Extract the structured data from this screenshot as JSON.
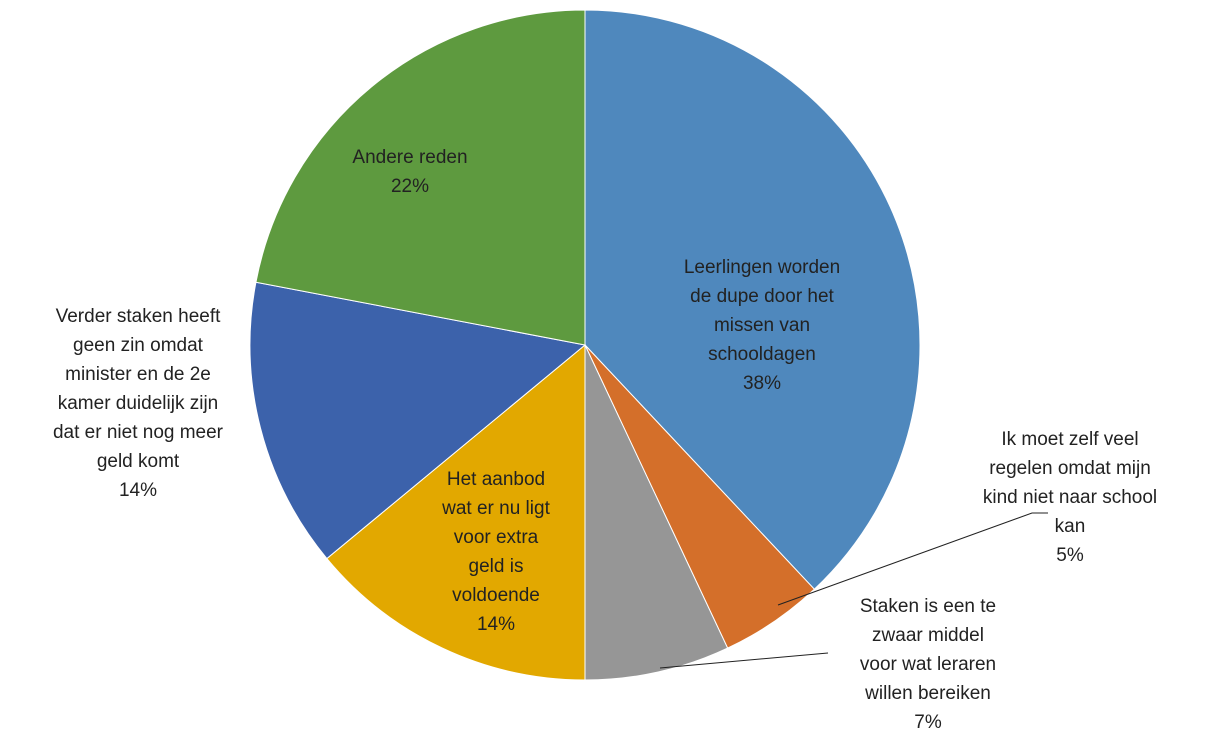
{
  "chart_data": {
    "type": "pie",
    "categories": [
      [
        "Leerlingen worden",
        "de dupe door het",
        "missen van",
        "schooldagen"
      ],
      [
        "Ik moet zelf veel",
        "regelen omdat mijn",
        "kind niet naar school",
        "kan"
      ],
      [
        "Staken is een te",
        "zwaar middel",
        "voor wat leraren",
        "willen bereiken"
      ],
      [
        "Het aanbod",
        "wat er nu ligt",
        "voor extra",
        "geld is",
        "voldoende"
      ],
      [
        "Verder staken heeft",
        "geen zin omdat",
        "minister en de 2e",
        "kamer duidelijk zijn",
        "dat er niet nog meer",
        "geld komt"
      ],
      [
        "Andere reden"
      ]
    ],
    "values": [
      38,
      5,
      7,
      14,
      14,
      22
    ],
    "value_labels": [
      "38%",
      "5%",
      "7%",
      "14%",
      "14%",
      "22%"
    ],
    "colors": [
      "#4f88bd",
      "#d46f2a",
      "#969696",
      "#e2a800",
      "#3c62ab",
      "#5e9a3f"
    ]
  }
}
